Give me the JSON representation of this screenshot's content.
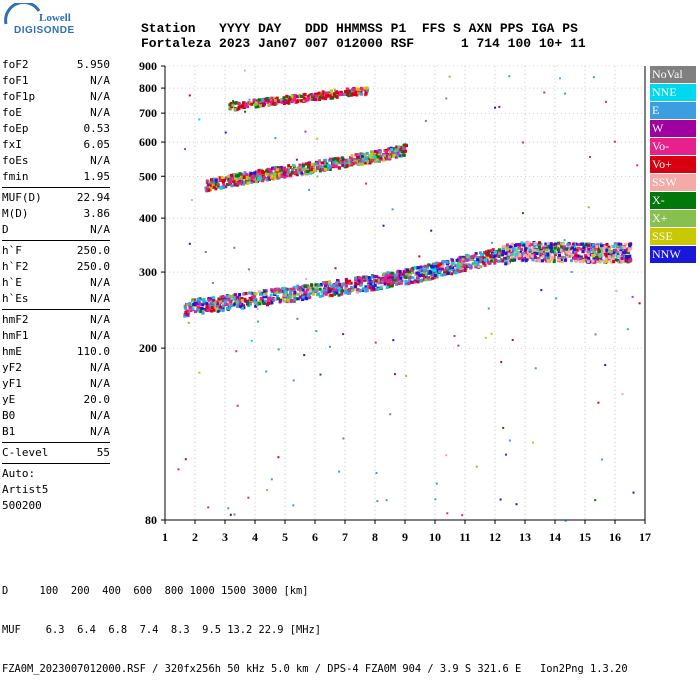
{
  "logo": {
    "line1": "Lowell",
    "line2": "DIGISONDE"
  },
  "header": {
    "row1": "Station   YYYY DAY   DDD HHMMSS P1  FFS S AXN PPS IGA PS",
    "row2": "Fortaleza 2023 Jan07 007 012000 RSF      1 714 100 10+ 11"
  },
  "param_groups": [
    [
      {
        "label": "foF2",
        "value": "5.950"
      },
      {
        "label": "foF1",
        "value": "N/A"
      },
      {
        "label": "foF1p",
        "value": "N/A"
      },
      {
        "label": "foE",
        "value": "N/A"
      },
      {
        "label": "foEp",
        "value": "0.53"
      },
      {
        "label": "fxI",
        "value": "6.05"
      },
      {
        "label": "foEs",
        "value": "N/A"
      },
      {
        "label": "fmin",
        "value": "1.95"
      }
    ],
    [
      {
        "label": "MUF(D)",
        "value": "22.94"
      },
      {
        "label": "M(D)",
        "value": "3.86"
      },
      {
        "label": "D",
        "value": "N/A"
      }
    ],
    [
      {
        "label": "h`F",
        "value": "250.0"
      },
      {
        "label": "h`F2",
        "value": "250.0"
      },
      {
        "label": "h`E",
        "value": "N/A"
      },
      {
        "label": "h`Es",
        "value": "N/A"
      }
    ],
    [
      {
        "label": "hmF2",
        "value": "N/A"
      },
      {
        "label": "hmF1",
        "value": "N/A"
      },
      {
        "label": "hmE",
        "value": "110.0"
      },
      {
        "label": "yF2",
        "value": "N/A"
      },
      {
        "label": "yF1",
        "value": "N/A"
      },
      {
        "label": "yE",
        "value": "20.0"
      },
      {
        "label": "B0",
        "value": "N/A"
      },
      {
        "label": "B1",
        "value": "N/A"
      }
    ],
    [
      {
        "label": "C-level",
        "value": "55"
      }
    ]
  ],
  "auto_block": {
    "line1": "Auto:",
    "line2": "Artist5",
    "line3": "500200"
  },
  "legend": [
    {
      "label": "NoVal",
      "color": "#808080"
    },
    {
      "label": "NNE",
      "color": "#00d8f0"
    },
    {
      "label": "E",
      "color": "#3a9ee0"
    },
    {
      "label": "W",
      "color": "#a000a0"
    },
    {
      "label": "Vo-",
      "color": "#e8208c"
    },
    {
      "label": "Vo+",
      "color": "#d80010"
    },
    {
      "label": "SSW",
      "color": "#f4aaa8"
    },
    {
      "label": "X-",
      "color": "#00780a"
    },
    {
      "label": "X+",
      "color": "#88c050"
    },
    {
      "label": "SSE",
      "color": "#c8c800"
    },
    {
      "label": "NNW",
      "color": "#1818d8"
    }
  ],
  "footer": {
    "row1": "D     100  200  400  600  800 1000 1500 3000 [km]",
    "row2": "MUF    6.3  6.4  6.8  7.4  8.3  9.5 13.2 22.9 [MHz]",
    "row3": "FZA0M_2023007012000.RSF / 320fx256h 50 kHz 5.0 km / DPS-4 FZA0M 904 / 3.9 S 321.6 E   Ion2Png 1.3.20"
  },
  "chart_data": {
    "type": "scatter",
    "xlim": [
      1,
      17
    ],
    "ylim": [
      80,
      900
    ],
    "x_ticks": [
      "1",
      "2",
      "3",
      "4",
      "5",
      "6",
      "7",
      "8",
      "9",
      "10",
      "11",
      "12",
      "13",
      "14",
      "15",
      "16",
      "17"
    ],
    "y_ticks": [
      "80",
      "200",
      "300",
      "400",
      "500",
      "600",
      "700",
      "800",
      "900"
    ],
    "y_tick_values": [
      80,
      200,
      300,
      400,
      500,
      600,
      700,
      800,
      900
    ],
    "y_scale": "log",
    "grid": true,
    "traces": [
      {
        "name": "F trace 1",
        "x": [
          1.5,
          2,
          3,
          4,
          5,
          6,
          7,
          8,
          9,
          10,
          11,
          12,
          13,
          14,
          15,
          16,
          16.5
        ],
        "y": [
          248,
          252,
          257,
          262,
          268,
          274,
          280,
          287,
          295,
          305,
          318,
          330,
          338,
          336,
          335,
          335,
          336
        ]
      },
      {
        "name": "F trace 2",
        "x": [
          2.3,
          3,
          4,
          5,
          6,
          7,
          8,
          9
        ],
        "y": [
          478,
          490,
          504,
          518,
          530,
          545,
          560,
          580
        ]
      },
      {
        "name": "F trace 3",
        "x": [
          3.1,
          4,
          5,
          6,
          7,
          7.7
        ],
        "y": [
          728,
          743,
          757,
          772,
          787,
          795
        ]
      }
    ]
  }
}
